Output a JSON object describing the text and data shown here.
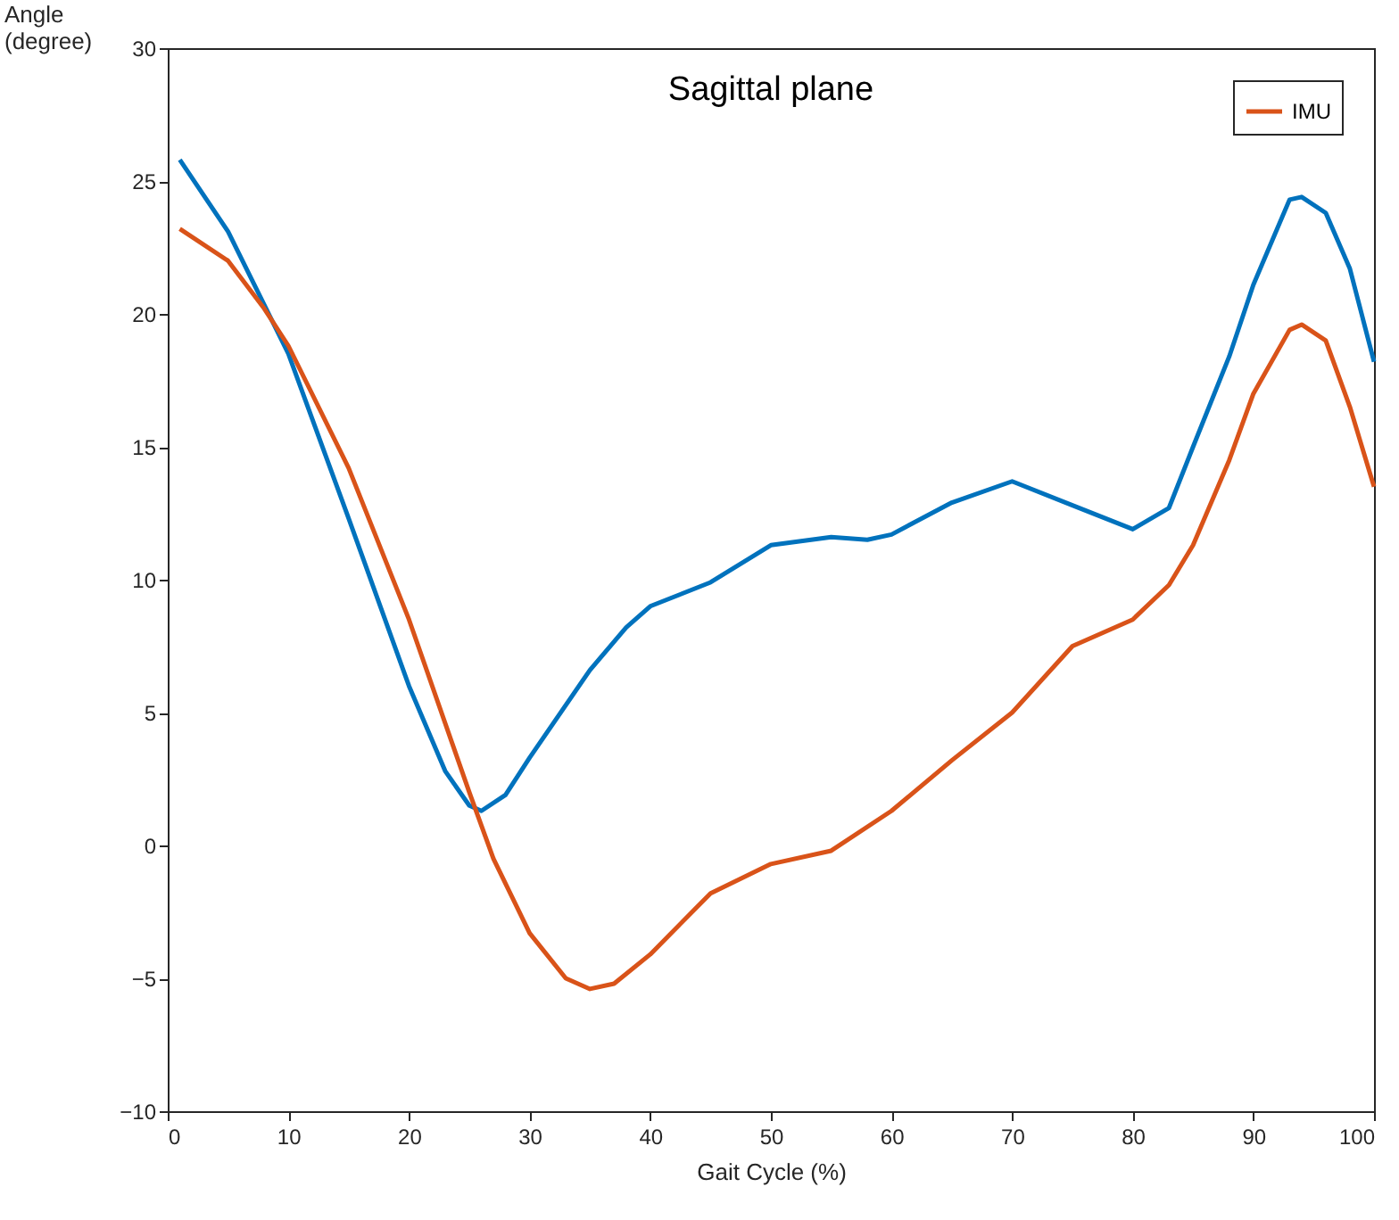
{
  "chart_data": {
    "type": "line",
    "title": "Sagittal plane",
    "xlabel": "Gait Cycle (%)",
    "ylabel": "Angle (degree)",
    "xlim": [
      0,
      100
    ],
    "ylim": [
      -10,
      30
    ],
    "xticks": [
      0,
      10,
      20,
      30,
      40,
      50,
      60,
      70,
      80,
      90,
      100
    ],
    "yticks": [
      -10,
      -5,
      0,
      5,
      10,
      15,
      20,
      25,
      30
    ],
    "grid": false,
    "legend": "top right",
    "marker": "none",
    "line_style": "solid",
    "series": [
      {
        "color": "#0072bd",
        "x": [
          1,
          5,
          10,
          15,
          20,
          23,
          25,
          26,
          28,
          30,
          35,
          38,
          40,
          45,
          50,
          55,
          58,
          60,
          65,
          70,
          75,
          80,
          83,
          85,
          88,
          90,
          93,
          94,
          96,
          98,
          100
        ],
        "values": [
          25.8,
          23.1,
          18.5,
          12.3,
          6.0,
          2.8,
          1.5,
          1.3,
          1.9,
          3.3,
          6.6,
          8.2,
          9.0,
          9.9,
          11.3,
          11.6,
          11.5,
          11.7,
          12.9,
          13.7,
          12.8,
          11.9,
          12.7,
          15.0,
          18.4,
          21.1,
          24.3,
          24.4,
          23.8,
          21.7,
          18.2
        ]
      },
      {
        "name": "IMU",
        "color": "#d95319",
        "x": [
          1,
          5,
          8,
          10,
          15,
          20,
          25,
          27,
          30,
          33,
          35,
          37,
          40,
          45,
          50,
          55,
          60,
          65,
          70,
          75,
          80,
          83,
          85,
          88,
          90,
          93,
          94,
          96,
          98,
          100
        ],
        "values": [
          23.2,
          22.0,
          20.2,
          18.8,
          14.2,
          8.5,
          2.0,
          -0.5,
          -3.3,
          -5.0,
          -5.4,
          -5.2,
          -4.1,
          -1.8,
          -0.7,
          -0.2,
          1.3,
          3.2,
          5.0,
          7.5,
          8.5,
          9.8,
          11.3,
          14.5,
          17.0,
          19.4,
          19.6,
          19.0,
          16.5,
          13.5
        ]
      }
    ]
  }
}
